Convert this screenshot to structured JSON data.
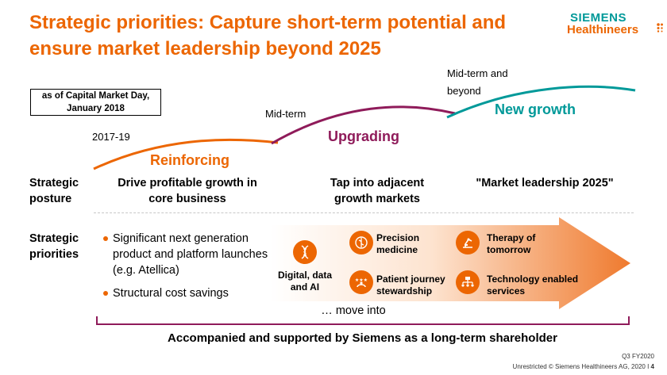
{
  "title": "Strategic priorities: Capture short-term potential and ensure market leadership beyond 2025",
  "logo": {
    "line1": "SIEMENS",
    "line2": "Healthineers"
  },
  "date_box": {
    "line1": "as of Capital Market Day,",
    "line2": "January 2018"
  },
  "phases": [
    {
      "period": "2017-19",
      "label": "Reinforcing",
      "posture": "Drive profitable growth in core business",
      "color": "#ec6602"
    },
    {
      "period": "Mid-term",
      "label": "Upgrading",
      "posture": "Tap into adjacent growth markets",
      "color": "#8f1b5a"
    },
    {
      "period": "Mid-term and beyond",
      "label": "New growth",
      "posture": "\"Market leadership 2025\"",
      "color": "#009999"
    }
  ],
  "row_labels": {
    "posture": "Strategic posture",
    "priorities": "Strategic priorities"
  },
  "bullets": [
    "Significant next generation product and platform launches (e.g. Atellica)",
    "Structural cost savings"
  ],
  "digital": {
    "label": "Digital, data and AI",
    "icon": "dna-dollar-icon"
  },
  "initiatives": [
    {
      "label": "Precision medicine",
      "icon": "medical-staff-icon"
    },
    {
      "label": "Therapy of tomorrow",
      "icon": "robot-arm-icon"
    },
    {
      "label": "Patient journey stewardship",
      "icon": "patient-rating-icon"
    },
    {
      "label": "Technology enabled services",
      "icon": "service-network-icon"
    }
  ],
  "move_into": "… move into",
  "bottom_line": "Accompanied and supported by Siemens as a long-term shareholder",
  "footer": {
    "quarter": "Q3 FY2020",
    "copyright": "Unrestricted © Siemens Healthineers AG, 2020 I",
    "page": "4"
  },
  "colors": {
    "accent": "#ec6602",
    "berry": "#8f1b5a",
    "teal": "#009999"
  }
}
